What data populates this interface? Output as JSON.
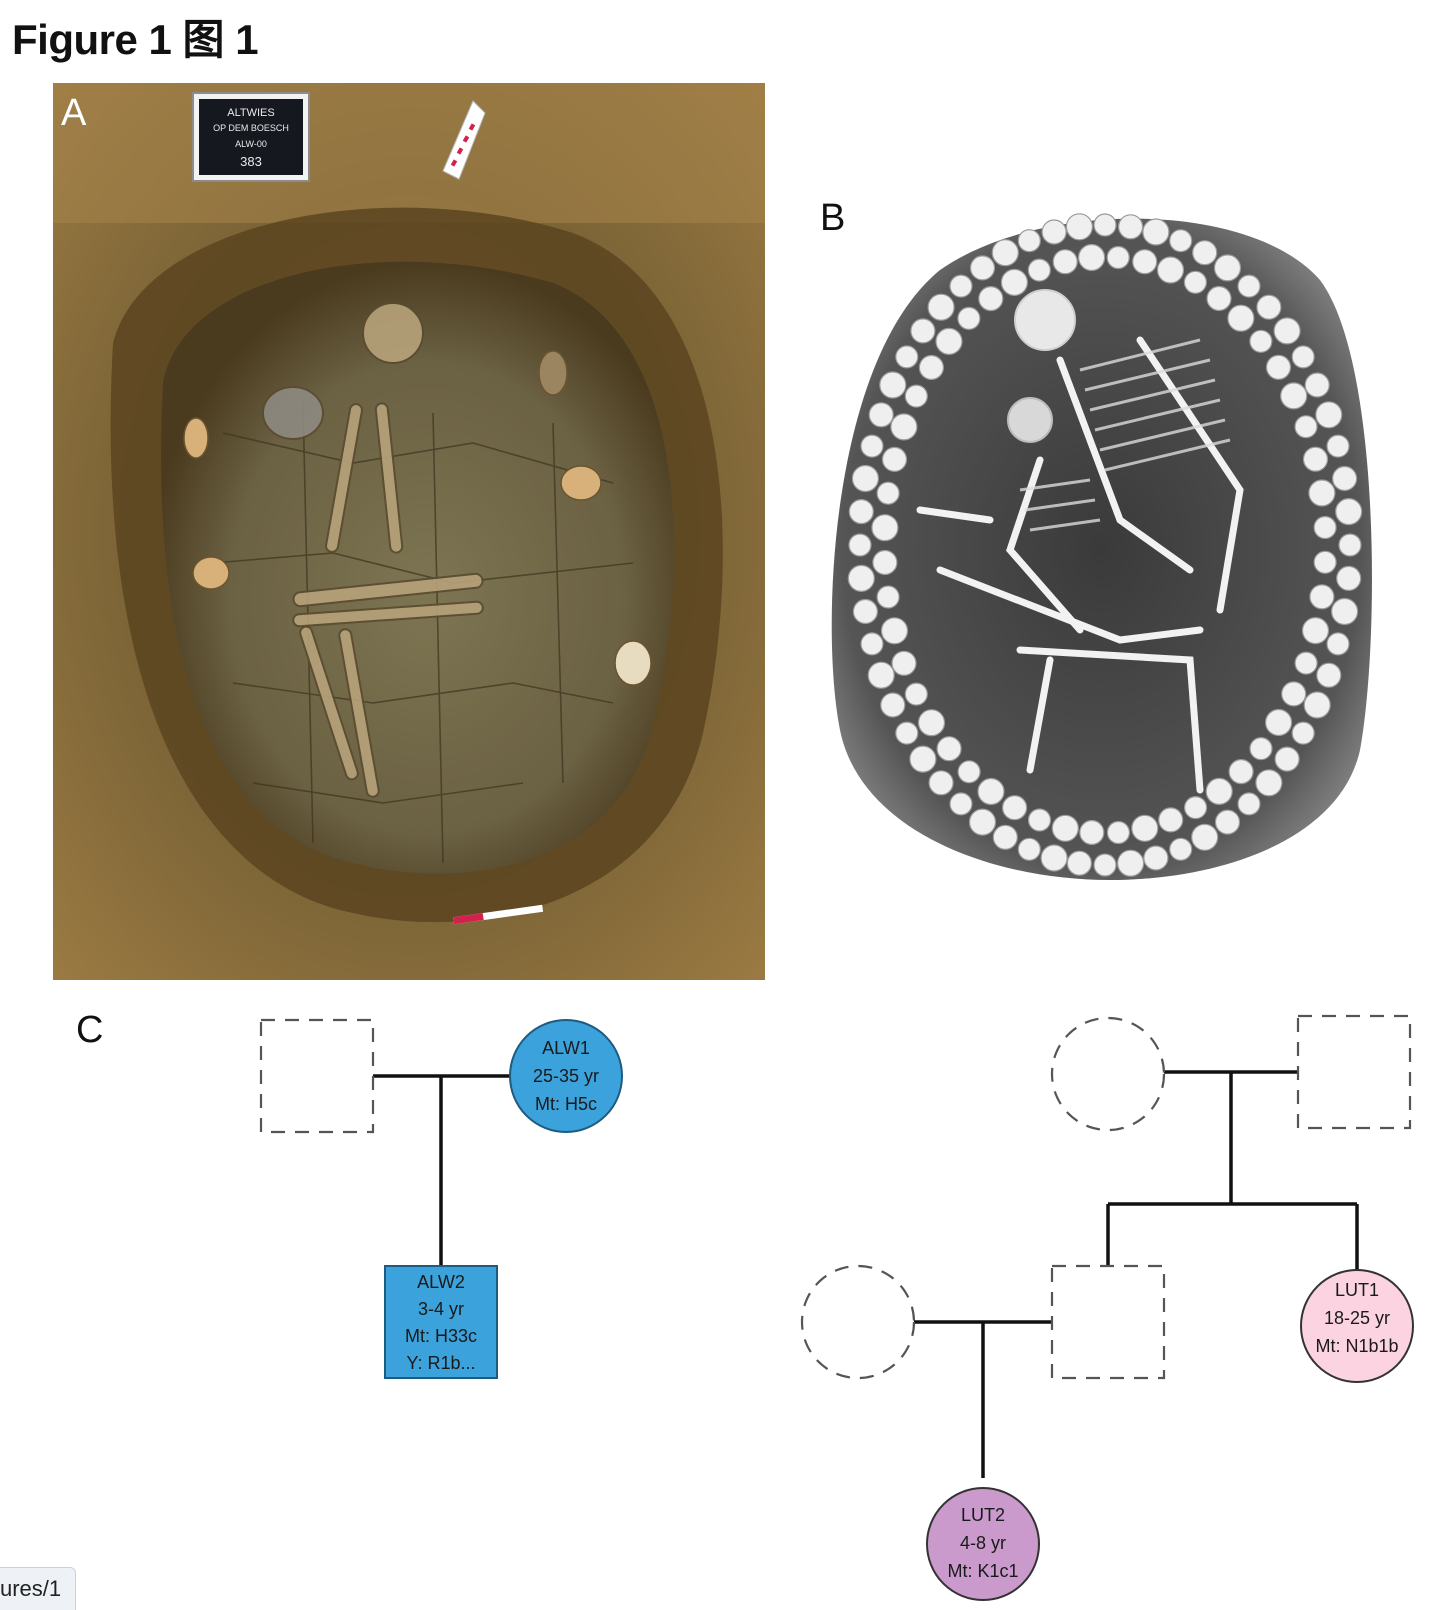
{
  "figure_title": "Figure 1 图 1",
  "panels": {
    "a": {
      "label": "A",
      "sign_lines": [
        "ALTWIES",
        "OP DEM BOESCH",
        "ALW-00",
        "383"
      ]
    },
    "b": {
      "label": "B"
    },
    "c": {
      "label": "C"
    }
  },
  "pedigree": {
    "alw1": {
      "id": "ALW1",
      "age": "25-35 yr",
      "mt": "Mt: H5c"
    },
    "alw2": {
      "id": "ALW2",
      "age": "3-4 yr",
      "mt": "Mt: H33c",
      "y": "Y: R1b..."
    },
    "lut1": {
      "id": "LUT1",
      "age": "18-25 yr",
      "mt": "Mt: N1b1b"
    },
    "lut2": {
      "id": "LUT2",
      "age": "4-8 yr",
      "mt": "Mt: K1c1"
    }
  },
  "colors": {
    "blue": "#3ba2dc",
    "pink": "#fbd3e1",
    "purple": "#c99acb"
  },
  "status_bar": {
    "url_fragment": "ures/1"
  }
}
